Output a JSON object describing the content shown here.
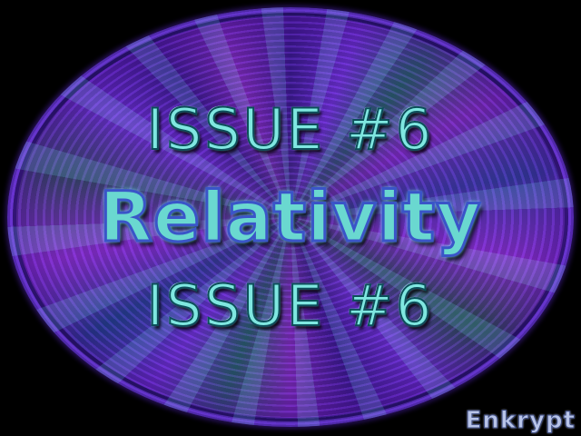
{
  "banner": {
    "issue_top": "ISSUE #6",
    "title": "Relativity",
    "issue_bottom": "ISSUE #6",
    "credit": "Enkrypt"
  },
  "colors": {
    "background": "#000000",
    "ellipse_purple": "#6a2fd0",
    "ellipse_teal": "#2a5a6e",
    "text_cyan": "#7fe7e0",
    "title_outline_blue": "#3a55c8",
    "credit_lavender": "#b8c4e8"
  }
}
